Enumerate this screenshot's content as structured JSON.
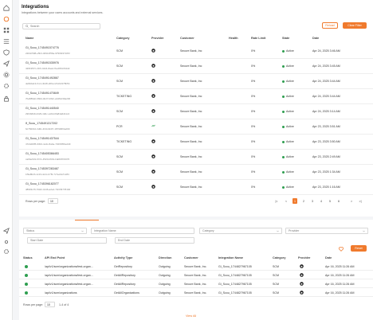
{
  "sidebar": {
    "icons": [
      "home-icon",
      "integrations-icon",
      "grid-icon",
      "list-icon",
      "shield-icon",
      "send-icon",
      "settings-icon",
      "gear-icon",
      "lock-icon",
      "plug-icon"
    ]
  },
  "header": {
    "title": "Integrations",
    "subtitle": "Integrations between your users accounts and external services."
  },
  "search": {
    "placeholder": "Search"
  },
  "toolbar": {
    "reload_label": "Reload",
    "clear_filter_label": "Clear Filter"
  },
  "table": {
    "columns": [
      "Name",
      "Category",
      "Provider",
      "Customer",
      "Health",
      "Rate Limit",
      "State",
      "Date"
    ],
    "rows": [
      {
        "name": "Gi_Scou_1745491574776",
        "id": "22b0c598-e5b3-4693-856a-9796bf4722f3",
        "category": "SCM",
        "provider": "github",
        "customer": "Secure Bank, Inc",
        "health": "",
        "rate": "0%",
        "state": "Active",
        "date": "Apr 24, 2025 3:46 AM"
      },
      {
        "name": "Gi_Scou_1745491535976",
        "id": "4261957c-2fc6-44d1-8aa1-fbe49613b4d2",
        "category": "SCM",
        "provider": "github",
        "customer": "Secure Bank, Inc",
        "health": "",
        "rate": "0%",
        "state": "Active",
        "date": "Apr 24, 2025 3:45 AM"
      },
      {
        "name": "Gi_Scou_1745491492867",
        "id": "de82da13-f1c1-4b28-a5fd-c2b1b4378b5b",
        "category": "SCM",
        "provider": "github",
        "customer": "Secure Bank, Inc",
        "health": "",
        "rate": "0%",
        "state": "Active",
        "date": "Apr 24, 2025 3:44 AM"
      },
      {
        "name": "Gi_Scou_1745491470849",
        "id": "7ba589dc-660d-4b27-b82c-ab4f1d30a230",
        "category": "TICKETING",
        "provider": "github",
        "customer": "Secure Bank, Inc",
        "health": "",
        "rate": "0%",
        "state": "Active",
        "date": "Apr 24, 2025 3:44 AM"
      },
      {
        "name": "Gi_Scou_1745491440540",
        "id": "29f4b8d9-2329-4dbc-a19d-0fa84a6d11c2",
        "category": "SCM",
        "provider": "github",
        "customer": "Secure Bank, Inc",
        "health": "",
        "rate": "0%",
        "state": "Active",
        "date": "Apr 24, 2025 3:14 AM"
      },
      {
        "name": "If_Scou_1745491317202",
        "id": "6c782010-3d6c-4f44-9b97-187906f3a209",
        "category": "PCR",
        "provider": "other",
        "customer": "Secure Bank, Inc",
        "health": "",
        "rate": "0%",
        "state": "Active",
        "date": "Apr 23, 2025 3:51 AM"
      },
      {
        "name": "Gi_Scou_1745491437544",
        "id": "47d4db85-6302-4e3c-8aba-7326f059e2d9",
        "category": "TICKETING",
        "provider": "github",
        "customer": "Secure Bank, Inc",
        "health": "",
        "rate": "0%",
        "state": "Active",
        "date": "Apr 23, 2025 3:50 AM"
      },
      {
        "name": "Gi_Scou_1745405366453",
        "id": "ca6be631-67c1-4520-b6b3-1fa8c5f7d076",
        "category": "SCM",
        "provider": "github",
        "customer": "Secure Bank, Inc",
        "health": "",
        "rate": "0%",
        "state": "Active",
        "date": "Apr 23, 2025 2:49 AM"
      },
      {
        "name": "Gi_Scou_1745397283467",
        "id": "1f9a8b2b-1c23-4c2c-b7f9-7c7ac0a71c84",
        "category": "SCM",
        "provider": "github",
        "customer": "Secure Bank, Inc",
        "health": "",
        "rate": "0%",
        "state": "Active",
        "date": "Apr 23, 2025 1:34 AM"
      },
      {
        "name": "Gi_Scou_1745396182077",
        "id": "d8903c7b-5422-4146-a2e4-73c0f37781b6",
        "category": "SCM",
        "provider": "github",
        "customer": "Secure Bank, Inc",
        "health": "",
        "rate": "0%",
        "state": "Active",
        "date": "Apr 23, 2025 1:16 AM"
      }
    ]
  },
  "pagination": {
    "rows_per_page_label": "Rows per page:",
    "rows_per_page_value": "10",
    "pages": [
      "1",
      "2",
      "3",
      "4",
      "5",
      "6"
    ],
    "active_page": "1"
  },
  "activity": {
    "filters": {
      "status": "Status",
      "integration_name": "Integration Name",
      "category": "Category",
      "provider": "Provider",
      "start_date": "Start Date",
      "end_date": "End Date"
    },
    "reset_label": "Reset",
    "columns": [
      "Status",
      "API End Point",
      "Activity Type",
      "Direction",
      "Customer",
      "Integration Name",
      "Category",
      "Provider",
      "Date"
    ],
    "rows": [
      {
        "endpoint": "/api/v1/scm/organizations/test-organ...",
        "type": "GetRepository",
        "direction": "Outgoing",
        "customer": "Secure Bank, Inc.",
        "integration": "Gi_Scou_1744827967105",
        "category": "SCM",
        "date": "Apr 16, 2025 11:26 AM"
      },
      {
        "endpoint": "/api/v1/scm/organizations/test-organ...",
        "type": "GetAllRepository",
        "direction": "Outgoing",
        "customer": "Secure Bank, Inc.",
        "integration": "Gi_Scou_1744827967105",
        "category": "SCM",
        "date": "Apr 16, 2025 11:26 AM"
      },
      {
        "endpoint": "/api/v1/scm/organizations/test-organ...",
        "type": "GetAllRepository",
        "direction": "Outgoing",
        "customer": "Secure Bank, Inc.",
        "integration": "Gi_Scou_1744827967105",
        "category": "SCM",
        "date": "Apr 16, 2025 11:26 AM"
      },
      {
        "endpoint": "/api/v1/scm/organizations",
        "type": "GetAllOrganizations",
        "direction": "Outgoing",
        "customer": "Secure Bank, Inc.",
        "integration": "Gi_Scou_1744827967105",
        "category": "SCM",
        "date": "Apr 16, 2025 11:26 AM"
      }
    ],
    "rows_per_page_label": "Rows per page:",
    "rows_per_page_value": "10",
    "range_label": "1-4 of 4",
    "view_all_label": "View All"
  },
  "colors": {
    "accent": "#f07a2d",
    "active": "#2e9e4f"
  }
}
